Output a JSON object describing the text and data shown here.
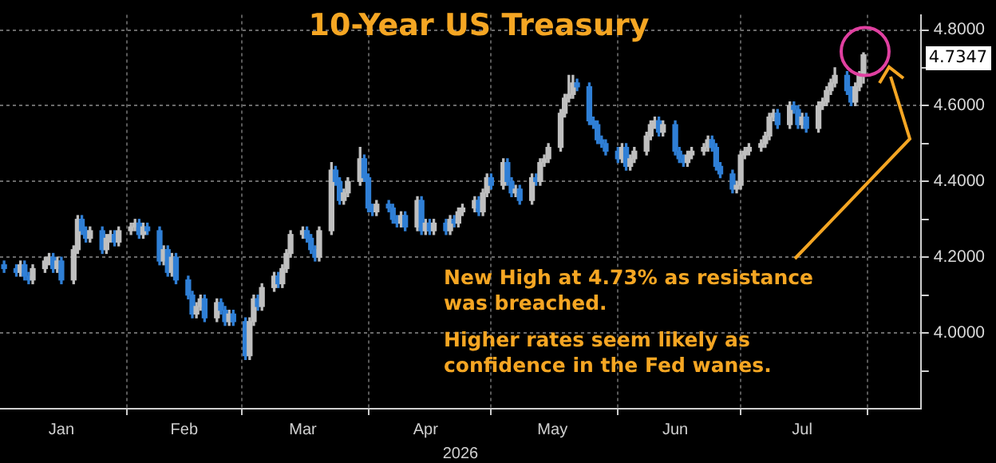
{
  "chart_data": {
    "type": "candlestick",
    "title": "10-Year US Treasury",
    "xlabel": "2026",
    "x": [
      "2026-01-02",
      "2026-01-05",
      "2026-01-06",
      "2026-01-07",
      "2026-01-08",
      "2026-01-09",
      "2026-01-12",
      "2026-01-13",
      "2026-01-14",
      "2026-01-15",
      "2026-01-16",
      "2026-01-19",
      "2026-01-20",
      "2026-01-21",
      "2026-01-22",
      "2026-01-23",
      "2026-01-26",
      "2026-01-27",
      "2026-01-28",
      "2026-01-29",
      "2026-01-30",
      "2026-02-02",
      "2026-02-03",
      "2026-02-04",
      "2026-02-05",
      "2026-02-06",
      "2026-02-09",
      "2026-02-10",
      "2026-02-11",
      "2026-02-12",
      "2026-02-13",
      "2026-02-16",
      "2026-02-17",
      "2026-02-18",
      "2026-02-19",
      "2026-02-20",
      "2026-02-23",
      "2026-02-24",
      "2026-02-25",
      "2026-02-26",
      "2026-02-27",
      "2026-03-02",
      "2026-03-03",
      "2026-03-04",
      "2026-03-05",
      "2026-03-06",
      "2026-03-09",
      "2026-03-10",
      "2026-03-11",
      "2026-03-12",
      "2026-03-13",
      "2026-03-16",
      "2026-03-17",
      "2026-03-18",
      "2026-03-19",
      "2026-03-20",
      "2026-03-23",
      "2026-03-24",
      "2026-03-25",
      "2026-03-26",
      "2026-03-27",
      "2026-03-30",
      "2026-03-31",
      "2026-04-01",
      "2026-04-02",
      "2026-04-03",
      "2026-04-06",
      "2026-04-07",
      "2026-04-08",
      "2026-04-09",
      "2026-04-10",
      "2026-04-13",
      "2026-04-14",
      "2026-04-15",
      "2026-04-16",
      "2026-04-17",
      "2026-04-20",
      "2026-04-21",
      "2026-04-22",
      "2026-04-23",
      "2026-04-24",
      "2026-04-27",
      "2026-04-28",
      "2026-04-29",
      "2026-04-30",
      "2026-05-01",
      "2026-05-04",
      "2026-05-05",
      "2026-05-06",
      "2026-05-07",
      "2026-05-08",
      "2026-05-11",
      "2026-05-12",
      "2026-05-13",
      "2026-05-14",
      "2026-05-15",
      "2026-05-18",
      "2026-05-19",
      "2026-05-20",
      "2026-05-21",
      "2026-05-22",
      "2026-05-25",
      "2026-05-26",
      "2026-05-27",
      "2026-05-28",
      "2026-05-29",
      "2026-06-01",
      "2026-06-02",
      "2026-06-03",
      "2026-06-04",
      "2026-06-05",
      "2026-06-08",
      "2026-06-09",
      "2026-06-10",
      "2026-06-11",
      "2026-06-12",
      "2026-06-15",
      "2026-06-16",
      "2026-06-17",
      "2026-06-18",
      "2026-06-19",
      "2026-06-22",
      "2026-06-23",
      "2026-06-24",
      "2026-06-25",
      "2026-06-26",
      "2026-06-29",
      "2026-06-30",
      "2026-07-01",
      "2026-07-02",
      "2026-07-03",
      "2026-07-06",
      "2026-07-07",
      "2026-07-08",
      "2026-07-09",
      "2026-07-10",
      "2026-07-13",
      "2026-07-14",
      "2026-07-15",
      "2026-07-16",
      "2026-07-17",
      "2026-07-20",
      "2026-07-21",
      "2026-07-22",
      "2026-07-23",
      "2026-07-24",
      "2026-07-27",
      "2026-07-28",
      "2026-07-29",
      "2026-07-30",
      "2026-07-31"
    ],
    "ohlc": [
      [
        4.18,
        4.19,
        4.16,
        4.17
      ],
      [
        4.17,
        4.18,
        4.15,
        4.16
      ],
      [
        4.16,
        4.19,
        4.15,
        4.18
      ],
      [
        4.18,
        4.19,
        4.14,
        4.15
      ],
      [
        4.15,
        4.16,
        4.13,
        4.14
      ],
      [
        4.14,
        4.18,
        4.13,
        4.17
      ],
      [
        4.17,
        4.2,
        4.16,
        4.19
      ],
      [
        4.19,
        4.21,
        4.18,
        4.2
      ],
      [
        4.2,
        4.21,
        4.16,
        4.17
      ],
      [
        4.17,
        4.2,
        4.16,
        4.19
      ],
      [
        4.19,
        4.2,
        4.13,
        4.14
      ],
      [
        4.14,
        4.23,
        4.13,
        4.22
      ],
      [
        4.22,
        4.31,
        4.21,
        4.3
      ],
      [
        4.3,
        4.31,
        4.26,
        4.27
      ],
      [
        4.27,
        4.28,
        4.24,
        4.25
      ],
      [
        4.25,
        4.28,
        4.24,
        4.27
      ],
      [
        4.27,
        4.28,
        4.21,
        4.22
      ],
      [
        4.22,
        4.26,
        4.21,
        4.25
      ],
      [
        4.25,
        4.27,
        4.24,
        4.26
      ],
      [
        4.26,
        4.27,
        4.23,
        4.24
      ],
      [
        4.24,
        4.28,
        4.23,
        4.27
      ],
      [
        4.27,
        4.29,
        4.26,
        4.28
      ],
      [
        4.28,
        4.3,
        4.27,
        4.29
      ],
      [
        4.29,
        4.3,
        4.25,
        4.26
      ],
      [
        4.26,
        4.29,
        4.25,
        4.28
      ],
      [
        4.28,
        4.29,
        4.26,
        4.27
      ],
      [
        4.27,
        4.28,
        4.18,
        4.19
      ],
      [
        4.19,
        4.23,
        4.18,
        4.22
      ],
      [
        4.22,
        4.23,
        4.15,
        4.16
      ],
      [
        4.16,
        4.21,
        4.15,
        4.2
      ],
      [
        4.2,
        4.21,
        4.13,
        4.14
      ],
      [
        4.14,
        4.15,
        4.09,
        4.1
      ],
      [
        4.1,
        4.11,
        4.04,
        4.05
      ],
      [
        4.05,
        4.08,
        4.04,
        4.07
      ],
      [
        4.07,
        4.1,
        4.06,
        4.09
      ],
      [
        4.09,
        4.1,
        4.03,
        4.04
      ],
      [
        4.04,
        4.09,
        4.03,
        4.08
      ],
      [
        4.08,
        4.09,
        4.05,
        4.06
      ],
      [
        4.06,
        4.07,
        4.02,
        4.03
      ],
      [
        4.03,
        4.06,
        4.02,
        4.05
      ],
      [
        4.05,
        4.06,
        4.02,
        4.03
      ],
      [
        4.03,
        4.04,
        3.93,
        3.94
      ],
      [
        3.94,
        4.04,
        3.93,
        4.03
      ],
      [
        4.03,
        4.1,
        4.02,
        4.09
      ],
      [
        4.09,
        4.1,
        4.06,
        4.07
      ],
      [
        4.07,
        4.13,
        4.06,
        4.12
      ],
      [
        4.12,
        4.16,
        4.11,
        4.15
      ],
      [
        4.15,
        4.16,
        4.12,
        4.13
      ],
      [
        4.13,
        4.18,
        4.12,
        4.17
      ],
      [
        4.17,
        4.22,
        4.16,
        4.21
      ],
      [
        4.21,
        4.27,
        4.2,
        4.26
      ],
      [
        4.26,
        4.28,
        4.25,
        4.27
      ],
      [
        4.27,
        4.28,
        4.24,
        4.25
      ],
      [
        4.25,
        4.26,
        4.21,
        4.22
      ],
      [
        4.22,
        4.23,
        4.19,
        4.2
      ],
      [
        4.2,
        4.28,
        4.19,
        4.27
      ],
      [
        4.27,
        4.45,
        4.26,
        4.43
      ],
      [
        4.43,
        4.44,
        4.39,
        4.4
      ],
      [
        4.4,
        4.41,
        4.34,
        4.35
      ],
      [
        4.35,
        4.38,
        4.34,
        4.37
      ],
      [
        4.37,
        4.41,
        4.36,
        4.4
      ],
      [
        4.4,
        4.49,
        4.39,
        4.46
      ],
      [
        4.46,
        4.47,
        4.4,
        4.41
      ],
      [
        4.41,
        4.42,
        4.32,
        4.33
      ],
      [
        4.33,
        4.34,
        4.31,
        4.32
      ],
      [
        4.32,
        4.35,
        4.31,
        4.34
      ],
      [
        4.34,
        4.35,
        4.32,
        4.33
      ],
      [
        4.33,
        4.34,
        4.29,
        4.3
      ],
      [
        4.3,
        4.31,
        4.28,
        4.29
      ],
      [
        4.29,
        4.32,
        4.28,
        4.31
      ],
      [
        4.31,
        4.32,
        4.27,
        4.28
      ],
      [
        4.28,
        4.36,
        4.27,
        4.35
      ],
      [
        4.35,
        4.36,
        4.26,
        4.27
      ],
      [
        4.27,
        4.3,
        4.26,
        4.29
      ],
      [
        4.29,
        4.3,
        4.26,
        4.27
      ],
      [
        4.27,
        4.3,
        4.26,
        4.29
      ],
      [
        4.29,
        4.3,
        4.26,
        4.27
      ],
      [
        4.27,
        4.31,
        4.26,
        4.3
      ],
      [
        4.3,
        4.31,
        4.28,
        4.29
      ],
      [
        4.29,
        4.33,
        4.28,
        4.32
      ],
      [
        4.32,
        4.34,
        4.31,
        4.33
      ],
      [
        4.33,
        4.36,
        4.32,
        4.35
      ],
      [
        4.35,
        4.36,
        4.31,
        4.32
      ],
      [
        4.32,
        4.38,
        4.31,
        4.37
      ],
      [
        4.37,
        4.42,
        4.36,
        4.41
      ],
      [
        4.41,
        4.42,
        4.38,
        4.39
      ],
      [
        4.39,
        4.46,
        4.38,
        4.45
      ],
      [
        4.45,
        4.46,
        4.39,
        4.4
      ],
      [
        4.4,
        4.41,
        4.36,
        4.37
      ],
      [
        4.37,
        4.39,
        4.36,
        4.38
      ],
      [
        4.38,
        4.39,
        4.34,
        4.35
      ],
      [
        4.35,
        4.42,
        4.34,
        4.41
      ],
      [
        4.41,
        4.42,
        4.39,
        4.4
      ],
      [
        4.4,
        4.46,
        4.39,
        4.45
      ],
      [
        4.45,
        4.47,
        4.44,
        4.46
      ],
      [
        4.46,
        4.5,
        4.45,
        4.49
      ],
      [
        4.49,
        4.59,
        4.48,
        4.58
      ],
      [
        4.58,
        4.63,
        4.57,
        4.62
      ],
      [
        4.62,
        4.68,
        4.61,
        4.63
      ],
      [
        4.63,
        4.68,
        4.62,
        4.66
      ],
      [
        4.66,
        4.67,
        4.64,
        4.65
      ],
      [
        4.65,
        4.66,
        4.55,
        4.56
      ],
      [
        4.56,
        4.57,
        4.54,
        4.55
      ],
      [
        4.55,
        4.56,
        4.5,
        4.51
      ],
      [
        4.51,
        4.52,
        4.49,
        4.5
      ],
      [
        4.5,
        4.51,
        4.47,
        4.48
      ],
      [
        4.48,
        4.49,
        4.45,
        4.46
      ],
      [
        4.46,
        4.5,
        4.45,
        4.49
      ],
      [
        4.49,
        4.5,
        4.43,
        4.44
      ],
      [
        4.44,
        4.47,
        4.43,
        4.46
      ],
      [
        4.46,
        4.49,
        4.45,
        4.48
      ],
      [
        4.48,
        4.53,
        4.47,
        4.52
      ],
      [
        4.52,
        4.56,
        4.51,
        4.55
      ],
      [
        4.55,
        4.57,
        4.54,
        4.56
      ],
      [
        4.56,
        4.57,
        4.52,
        4.53
      ],
      [
        4.53,
        4.56,
        4.52,
        4.55
      ],
      [
        4.55,
        4.56,
        4.47,
        4.48
      ],
      [
        4.48,
        4.49,
        4.45,
        4.46
      ],
      [
        4.46,
        4.47,
        4.44,
        4.45
      ],
      [
        4.45,
        4.48,
        4.44,
        4.47
      ],
      [
        4.47,
        4.49,
        4.46,
        4.48
      ],
      [
        4.48,
        4.5,
        4.47,
        4.49
      ],
      [
        4.49,
        4.52,
        4.48,
        4.51
      ],
      [
        4.51,
        4.52,
        4.48,
        4.49
      ],
      [
        4.49,
        4.5,
        4.43,
        4.44
      ],
      [
        4.44,
        4.45,
        4.41,
        4.42
      ],
      [
        4.42,
        4.43,
        4.37,
        4.38
      ],
      [
        4.38,
        4.4,
        4.37,
        4.39
      ],
      [
        4.39,
        4.48,
        4.38,
        4.47
      ],
      [
        4.47,
        4.49,
        4.46,
        4.48
      ],
      [
        4.48,
        4.5,
        4.47,
        4.49
      ],
      [
        4.49,
        4.51,
        4.48,
        4.5
      ],
      [
        4.5,
        4.53,
        4.49,
        4.52
      ],
      [
        4.52,
        4.58,
        4.51,
        4.57
      ],
      [
        4.57,
        4.59,
        4.56,
        4.58
      ],
      [
        4.58,
        4.59,
        4.54,
        4.55
      ],
      [
        4.55,
        4.61,
        4.54,
        4.6
      ],
      [
        4.6,
        4.61,
        4.58,
        4.59
      ],
      [
        4.59,
        4.6,
        4.54,
        4.55
      ],
      [
        4.55,
        4.58,
        4.54,
        4.57
      ],
      [
        4.57,
        4.58,
        4.53,
        4.54
      ],
      [
        4.54,
        4.61,
        4.53,
        4.6
      ],
      [
        4.6,
        4.62,
        4.59,
        4.61
      ],
      [
        4.61,
        4.65,
        4.6,
        4.64
      ],
      [
        4.64,
        4.67,
        4.63,
        4.66
      ],
      [
        4.66,
        4.7,
        4.65,
        4.68
      ],
      [
        4.68,
        4.69,
        4.63,
        4.64
      ],
      [
        4.64,
        4.65,
        4.6,
        4.61
      ],
      [
        4.61,
        4.66,
        4.6,
        4.65
      ],
      [
        4.65,
        4.69,
        4.64,
        4.68
      ],
      [
        4.68,
        4.74,
        4.66,
        4.7347
      ]
    ],
    "colors": [
      "#2f7fd6",
      "#2f7fd6",
      "#bfbfbf",
      "#2f7fd6",
      "#2f7fd6",
      "#bfbfbf",
      "#bfbfbf",
      "#bfbfbf",
      "#2f7fd6",
      "#bfbfbf",
      "#2f7fd6",
      "#bfbfbf",
      "#bfbfbf",
      "#2f7fd6",
      "#2f7fd6",
      "#bfbfbf",
      "#2f7fd6",
      "#bfbfbf",
      "#bfbfbf",
      "#2f7fd6",
      "#bfbfbf",
      "#bfbfbf",
      "#bfbfbf",
      "#2f7fd6",
      "#bfbfbf",
      "#2f7fd6",
      "#2f7fd6",
      "#bfbfbf",
      "#2f7fd6",
      "#bfbfbf",
      "#2f7fd6",
      "#2f7fd6",
      "#2f7fd6",
      "#bfbfbf",
      "#bfbfbf",
      "#2f7fd6",
      "#bfbfbf",
      "#2f7fd6",
      "#2f7fd6",
      "#bfbfbf",
      "#2f7fd6",
      "#2f7fd6",
      "#bfbfbf",
      "#bfbfbf",
      "#2f7fd6",
      "#bfbfbf",
      "#bfbfbf",
      "#2f7fd6",
      "#bfbfbf",
      "#bfbfbf",
      "#bfbfbf",
      "#bfbfbf",
      "#2f7fd6",
      "#2f7fd6",
      "#2f7fd6",
      "#bfbfbf",
      "#bfbfbf",
      "#2f7fd6",
      "#2f7fd6",
      "#bfbfbf",
      "#bfbfbf",
      "#bfbfbf",
      "#2f7fd6",
      "#2f7fd6",
      "#2f7fd6",
      "#bfbfbf",
      "#2f7fd6",
      "#2f7fd6",
      "#2f7fd6",
      "#bfbfbf",
      "#2f7fd6",
      "#bfbfbf",
      "#2f7fd6",
      "#bfbfbf",
      "#2f7fd6",
      "#bfbfbf",
      "#2f7fd6",
      "#bfbfbf",
      "#2f7fd6",
      "#bfbfbf",
      "#bfbfbf",
      "#bfbfbf",
      "#2f7fd6",
      "#bfbfbf",
      "#bfbfbf",
      "#2f7fd6",
      "#bfbfbf",
      "#2f7fd6",
      "#2f7fd6",
      "#bfbfbf",
      "#2f7fd6",
      "#bfbfbf",
      "#2f7fd6",
      "#bfbfbf",
      "#bfbfbf",
      "#bfbfbf",
      "#bfbfbf",
      "#bfbfbf",
      "#bfbfbf",
      "#bfbfbf",
      "#2f7fd6",
      "#2f7fd6",
      "#2f7fd6",
      "#2f7fd6",
      "#2f7fd6",
      "#2f7fd6",
      "#2f7fd6",
      "#bfbfbf",
      "#2f7fd6",
      "#bfbfbf",
      "#bfbfbf",
      "#bfbfbf",
      "#bfbfbf",
      "#bfbfbf",
      "#2f7fd6",
      "#bfbfbf",
      "#2f7fd6",
      "#2f7fd6",
      "#2f7fd6",
      "#bfbfbf",
      "#bfbfbf",
      "#bfbfbf",
      "#bfbfbf",
      "#2f7fd6",
      "#2f7fd6",
      "#2f7fd6",
      "#2f7fd6",
      "#bfbfbf",
      "#bfbfbf",
      "#bfbfbf",
      "#bfbfbf",
      "#bfbfbf",
      "#bfbfbf",
      "#bfbfbf",
      "#bfbfbf",
      "#2f7fd6",
      "#bfbfbf",
      "#2f7fd6",
      "#2f7fd6",
      "#bfbfbf",
      "#2f7fd6",
      "#bfbfbf",
      "#bfbfbf",
      "#bfbfbf",
      "#bfbfbf",
      "#bfbfbf",
      "#2f7fd6",
      "#2f7fd6",
      "#bfbfbf",
      "#bfbfbf",
      "#bfbfbf"
    ],
    "xlim": [
      "2026-01-01",
      "2026-08-14"
    ],
    "xticks": [
      {
        "value": "2026-01-16",
        "label": "Jan"
      },
      {
        "value": "2026-02-01",
        "label": null
      },
      {
        "value": "2026-02-15",
        "label": "Feb"
      },
      {
        "value": "2026-03-01",
        "label": null
      },
      {
        "value": "2026-03-16",
        "label": "Mar"
      },
      {
        "value": "2026-04-01",
        "label": null
      },
      {
        "value": "2026-04-15",
        "label": "Apr"
      },
      {
        "value": "2026-05-01",
        "label": null
      },
      {
        "value": "2026-05-16",
        "label": "May"
      },
      {
        "value": "2026-06-01",
        "label": null
      },
      {
        "value": "2026-06-15",
        "label": "Jun"
      },
      {
        "value": "2026-07-01",
        "label": null
      },
      {
        "value": "2026-07-16",
        "label": "Jul"
      },
      {
        "value": "2026-08-01",
        "label": null
      }
    ],
    "ylim": [
      3.8,
      4.84
    ],
    "yticks": [
      {
        "value": 3.9,
        "label": null
      },
      {
        "value": 4.0,
        "label": "4.0000"
      },
      {
        "value": 4.1,
        "label": null
      },
      {
        "value": 4.2,
        "label": "4.2000"
      },
      {
        "value": 4.3,
        "label": null
      },
      {
        "value": 4.4,
        "label": "4.4000"
      },
      {
        "value": 4.5,
        "label": null
      },
      {
        "value": 4.6,
        "label": "4.6000"
      },
      {
        "value": 4.7,
        "label": null
      },
      {
        "value": 4.8,
        "label": "4.8000"
      }
    ],
    "grid": true,
    "legend": false,
    "annotations": [
      "4.7347",
      "New High at 4.73% as resistance was breached.",
      "Higher rates seem likely as confidence in the Fed wanes."
    ]
  }
}
